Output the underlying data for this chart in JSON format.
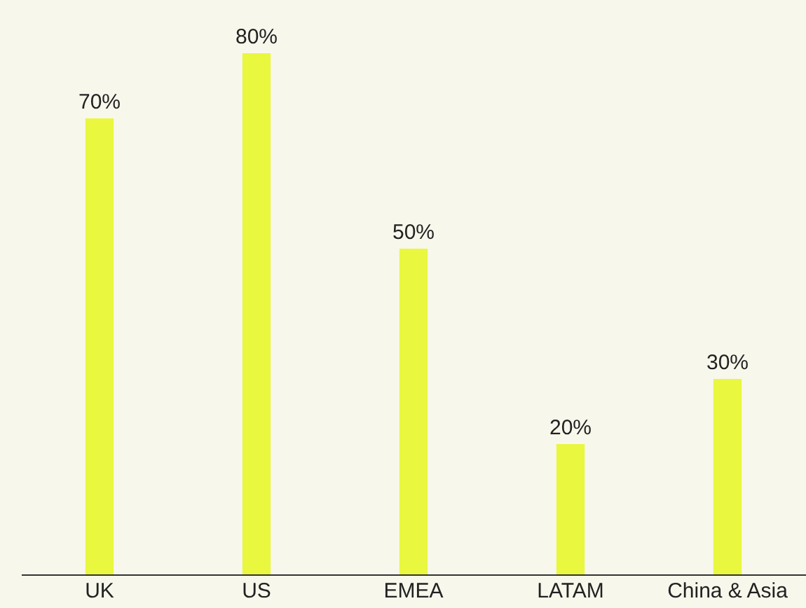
{
  "chart_data": {
    "type": "bar",
    "categories": [
      "UK",
      "US",
      "EMEA",
      "LATAM",
      "China & Asia"
    ],
    "values": [
      70,
      80,
      50,
      20,
      30
    ],
    "color": "#e9f73f",
    "value_labels": [
      "70%",
      "80%",
      "50%",
      "20%",
      "30%"
    ],
    "grid": false,
    "tick_labels": "x"
  }
}
